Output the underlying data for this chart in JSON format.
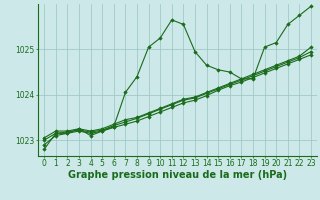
{
  "background_color": "#cce8e8",
  "grid_color": "#a0c8c8",
  "line_color": "#1a6b1a",
  "marker_color": "#1a6b1a",
  "xlabel": "Graphe pression niveau de la mer (hPa)",
  "xlabel_fontsize": 7,
  "tick_fontsize": 5.5,
  "xlim": [
    -0.5,
    23.5
  ],
  "ylim": [
    1022.65,
    1026.0
  ],
  "yticks": [
    1023,
    1024,
    1025
  ],
  "xticks": [
    0,
    1,
    2,
    3,
    4,
    5,
    6,
    7,
    8,
    9,
    10,
    11,
    12,
    13,
    14,
    15,
    16,
    17,
    18,
    19,
    20,
    21,
    22,
    23
  ],
  "series": [
    [
      1022.8,
      1023.15,
      1023.15,
      1023.25,
      1023.1,
      1023.2,
      1023.3,
      1024.05,
      1024.4,
      1025.05,
      1025.25,
      1025.65,
      1025.55,
      1024.95,
      1024.65,
      1024.55,
      1024.5,
      1024.35,
      1024.35,
      1025.05,
      1025.15,
      1025.55,
      1025.75,
      1025.95
    ],
    [
      1023.05,
      1023.2,
      1023.2,
      1023.25,
      1023.2,
      1023.25,
      1023.35,
      1023.45,
      1023.5,
      1023.6,
      1023.7,
      1023.8,
      1023.9,
      1023.95,
      1024.05,
      1024.15,
      1024.25,
      1024.35,
      1024.45,
      1024.55,
      1024.65,
      1024.75,
      1024.85,
      1025.05
    ],
    [
      1023.0,
      1023.15,
      1023.18,
      1023.22,
      1023.18,
      1023.22,
      1023.32,
      1023.4,
      1023.48,
      1023.58,
      1023.68,
      1023.78,
      1023.88,
      1023.93,
      1024.03,
      1024.13,
      1024.23,
      1024.32,
      1024.42,
      1024.52,
      1024.62,
      1024.72,
      1024.82,
      1024.95
    ],
    [
      1022.9,
      1023.1,
      1023.15,
      1023.2,
      1023.15,
      1023.2,
      1023.28,
      1023.35,
      1023.42,
      1023.52,
      1023.62,
      1023.72,
      1023.82,
      1023.88,
      1023.98,
      1024.1,
      1024.2,
      1024.28,
      1024.38,
      1024.48,
      1024.58,
      1024.68,
      1024.78,
      1024.88
    ]
  ]
}
